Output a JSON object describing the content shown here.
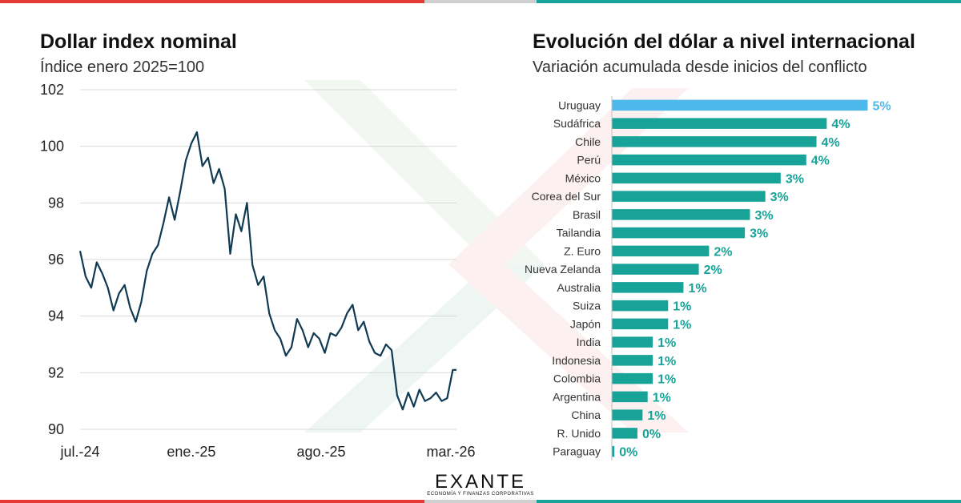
{
  "colors": {
    "accent_red": "#e53935",
    "accent_teal": "#17a398",
    "accent_blue": "#4db8ec",
    "line": "#0f3a52",
    "stripe_gray": "#cfcfcf"
  },
  "brand": {
    "logo_text": "EXANTE",
    "tagline": "ECONOMÍA Y FINANZAS CORPORATIVAS"
  },
  "chart_data": [
    {
      "type": "line",
      "title": "Dollar index nominal",
      "subtitle": "Índice enero 2025=100",
      "ylim": [
        90,
        102
      ],
      "yticks": [
        90,
        92,
        94,
        96,
        98,
        100,
        102
      ],
      "xtick_labels": [
        "jul.-24",
        "ene.-25",
        "ago.-25",
        "mar.-26"
      ],
      "xtick_positions": [
        0,
        6,
        13,
        20
      ],
      "xlim": [
        0,
        20.3
      ],
      "grid": true,
      "series": [
        {
          "x": [
            0,
            0.3,
            0.6,
            0.9,
            1.2,
            1.5,
            1.8,
            2.1,
            2.4,
            2.7,
            3.0,
            3.3,
            3.6,
            3.9,
            4.2,
            4.5,
            4.8,
            5.1,
            5.4,
            5.7,
            6.0,
            6.3,
            6.6,
            6.9,
            7.2,
            7.5,
            7.8,
            8.1,
            8.4,
            8.7,
            9.0,
            9.3,
            9.6,
            9.9,
            10.2,
            10.5,
            10.8,
            11.1,
            11.4,
            11.7,
            12.0,
            12.3,
            12.6,
            12.9,
            13.2,
            13.5,
            13.8,
            14.1,
            14.4,
            14.7,
            15.0,
            15.3,
            15.6,
            15.9,
            16.2,
            16.5,
            16.8,
            17.1,
            17.4,
            17.7,
            18.0,
            18.3,
            18.6,
            18.9,
            19.2,
            19.5,
            19.8,
            20.1,
            20.3
          ],
          "y": [
            96.3,
            95.4,
            95.0,
            95.9,
            95.5,
            95.0,
            94.2,
            94.8,
            95.1,
            94.3,
            93.8,
            94.5,
            95.6,
            96.2,
            96.5,
            97.3,
            98.2,
            97.4,
            98.4,
            99.5,
            100.1,
            100.5,
            99.3,
            99.6,
            98.7,
            99.2,
            98.5,
            96.2,
            97.6,
            97.0,
            98.0,
            95.8,
            95.1,
            95.4,
            94.1,
            93.5,
            93.2,
            92.6,
            92.9,
            93.9,
            93.5,
            92.9,
            93.4,
            93.2,
            92.7,
            93.4,
            93.3,
            93.6,
            94.1,
            94.4,
            93.5,
            93.8,
            93.1,
            92.7,
            92.6,
            93.0,
            92.8,
            91.2,
            90.7,
            91.3,
            90.8,
            91.4,
            91.0,
            91.1,
            91.3,
            91.0,
            91.1,
            92.1,
            92.1
          ]
        }
      ]
    },
    {
      "type": "bar",
      "orientation": "horizontal",
      "title": "Evolución del dólar a nivel internacional",
      "subtitle": "Variación acumulada desde inicios del conflicto",
      "xlim": [
        0,
        5.4
      ],
      "categories": [
        "Uruguay",
        "Sudáfrica",
        "Chile",
        "Perú",
        "México",
        "Corea del Sur",
        "Brasil",
        "Tailandia",
        "Z. Euro",
        "Nueva Zelanda",
        "Australia",
        "Suiza",
        "Japón",
        "India",
        "Indonesia",
        "Colombia",
        "Argentina",
        "China",
        "R. Unido",
        "Paraguay"
      ],
      "values": [
        5.0,
        4.2,
        4.0,
        3.8,
        3.3,
        3.0,
        2.7,
        2.6,
        1.9,
        1.7,
        1.4,
        1.1,
        1.1,
        0.8,
        0.8,
        0.8,
        0.7,
        0.6,
        0.5,
        0.05
      ],
      "labels": [
        "5%",
        "4%",
        "4%",
        "4%",
        "3%",
        "3%",
        "3%",
        "3%",
        "2%",
        "2%",
        "1%",
        "1%",
        "1%",
        "1%",
        "1%",
        "1%",
        "1%",
        "1%",
        "0%",
        "0%"
      ],
      "highlight": [
        "Uruguay"
      ]
    }
  ]
}
